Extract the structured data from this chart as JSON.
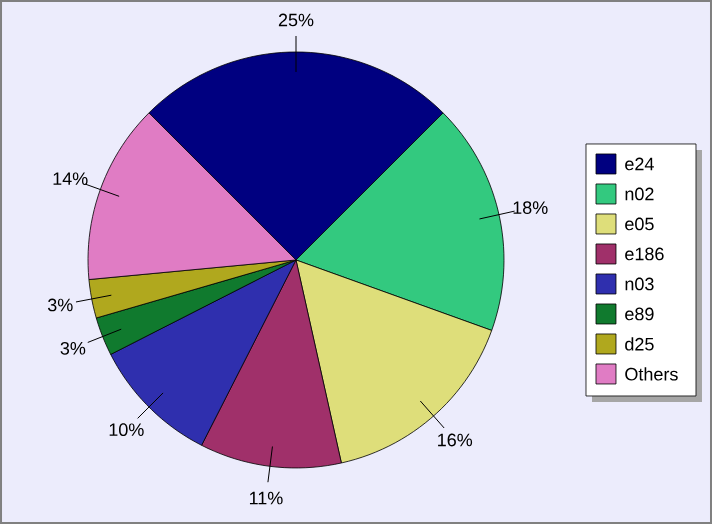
{
  "chart_data": {
    "type": "pie",
    "categories": [
      "e24",
      "n02",
      "e05",
      "e186",
      "n03",
      "e89",
      "d25",
      "Others"
    ],
    "values": [
      25,
      18,
      16,
      11,
      10,
      3,
      3,
      14
    ],
    "value_labels": [
      "25%",
      "18%",
      "16%",
      "11%",
      "10%",
      "3%",
      "3%",
      "14%"
    ],
    "colors": [
      "#000080",
      "#33c97f",
      "#dede7a",
      "#a0306a",
      "#2f2fae",
      "#107a2e",
      "#b0a81e",
      "#e07cc4"
    ],
    "legend": "right"
  }
}
